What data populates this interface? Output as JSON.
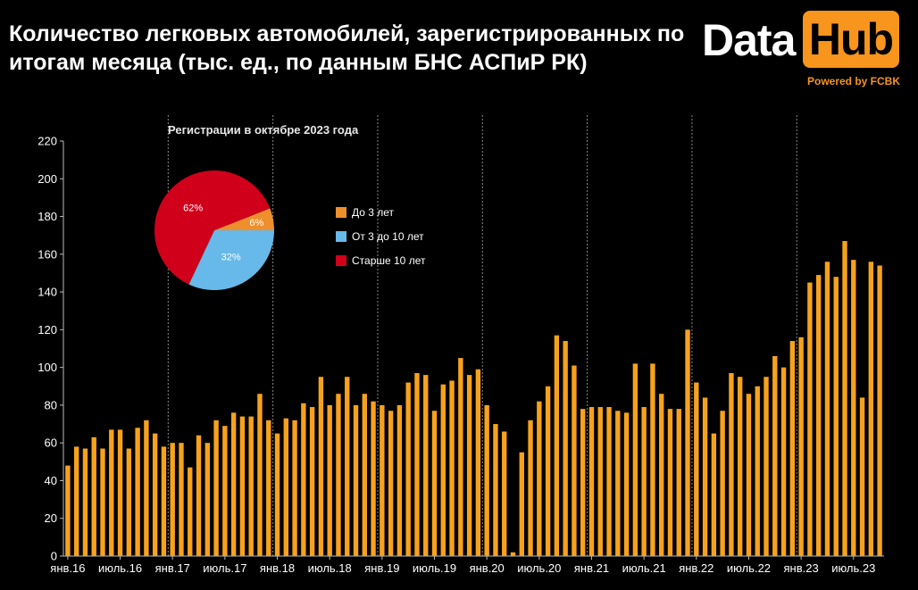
{
  "header": {
    "title": "Количество легковых автомобилей, зарегистрированных по итогам месяца (тыс. ед., по данным БНС АСПиР РК)"
  },
  "logo": {
    "data_text": "Data",
    "hub_text": "Hub",
    "powered": "Powered by FCBK",
    "accent": "#f7951d"
  },
  "chart_data": [
    {
      "type": "bar",
      "title": "",
      "xlabel": "",
      "ylabel": "",
      "ylim": [
        0,
        220
      ],
      "yticks": [
        0,
        20,
        40,
        60,
        80,
        100,
        120,
        140,
        160,
        180,
        200,
        220
      ],
      "grid": false,
      "bar_color": "#f7a21d",
      "x_tick_labels": [
        {
          "index": 0,
          "label": "янв.16"
        },
        {
          "index": 6,
          "label": "июль.16"
        },
        {
          "index": 12,
          "label": "янв.17"
        },
        {
          "index": 18,
          "label": "июль.17"
        },
        {
          "index": 24,
          "label": "янв.18"
        },
        {
          "index": 30,
          "label": "июль.18"
        },
        {
          "index": 36,
          "label": "янв.19"
        },
        {
          "index": 42,
          "label": "июль.19"
        },
        {
          "index": 48,
          "label": "янв.20"
        },
        {
          "index": 54,
          "label": "июль.20"
        },
        {
          "index": 60,
          "label": "янв.21"
        },
        {
          "index": 66,
          "label": "июль.21"
        },
        {
          "index": 72,
          "label": "янв.22"
        },
        {
          "index": 78,
          "label": "июль.22"
        },
        {
          "index": 84,
          "label": "янв.23"
        },
        {
          "index": 90,
          "label": "июль.23"
        }
      ],
      "year_separators": [
        11.5,
        23.5,
        35.5,
        47.5,
        59.5,
        71.5,
        83.5
      ],
      "values": [
        48,
        58,
        57,
        63,
        57,
        67,
        67,
        57,
        68,
        72,
        65,
        58,
        60,
        60,
        47,
        64,
        60,
        72,
        69,
        76,
        74,
        74,
        86,
        72,
        65,
        73,
        72,
        81,
        79,
        95,
        80,
        86,
        95,
        80,
        86,
        82,
        80,
        77,
        80,
        92,
        97,
        96,
        77,
        91,
        93,
        105,
        96,
        99,
        80,
        70,
        66,
        2,
        55,
        72,
        82,
        90,
        117,
        114,
        101,
        78,
        79,
        79,
        79,
        77,
        76,
        102,
        79,
        102,
        86,
        78,
        78,
        120,
        92,
        84,
        65,
        77,
        97,
        95,
        86,
        90,
        95,
        106,
        100,
        114,
        116,
        145,
        149,
        156,
        148,
        167,
        157,
        84,
        156,
        154
      ]
    },
    {
      "type": "pie",
      "title": "Регистрации в октябре 2023 года",
      "slices": [
        {
          "label": "До 3 лет",
          "value": 6,
          "text": "6%",
          "color": "#ee8f2e"
        },
        {
          "label": "От 3 до 10 лет",
          "value": 32,
          "text": "32%",
          "color": "#66b9e8"
        },
        {
          "label": "Старше 10 лет",
          "value": 62,
          "text": "62%",
          "color": "#d0001b"
        }
      ]
    }
  ]
}
